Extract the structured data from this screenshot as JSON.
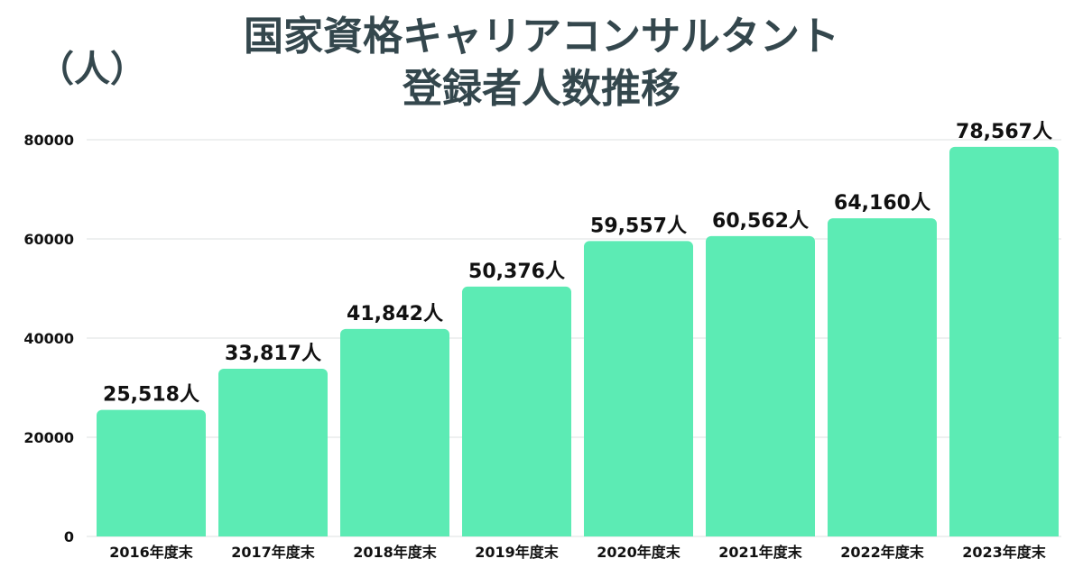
{
  "header": {
    "title_line1": "国家資格キャリアコンサルタント",
    "title_line2": "登録者人数推移",
    "unit_label": "（人）"
  },
  "chart_data": {
    "type": "bar",
    "title": "国家資格キャリアコンサルタント 登録者人数推移",
    "ylabel": "（人）",
    "xlabel": "",
    "categories": [
      "2016年度末",
      "2017年度末",
      "2018年度末",
      "2019年度末",
      "2020年度末",
      "2021年度末",
      "2022年度末",
      "2023年度末"
    ],
    "values": [
      25518,
      33817,
      41842,
      50376,
      59557,
      60562,
      64160,
      78567
    ],
    "data_labels": [
      "25,518人",
      "33,817人",
      "41,842人",
      "50,376人",
      "59,557人",
      "60,562人",
      "64,160人",
      "78,567人"
    ],
    "ylim": [
      0,
      80000
    ],
    "yticks": [
      0,
      20000,
      40000,
      60000,
      80000
    ],
    "grid": true,
    "legend": "none",
    "colors": {
      "bar": "#5cebb4",
      "text": "#111111",
      "title": "#34474d",
      "grid": "#dde2e2"
    }
  }
}
